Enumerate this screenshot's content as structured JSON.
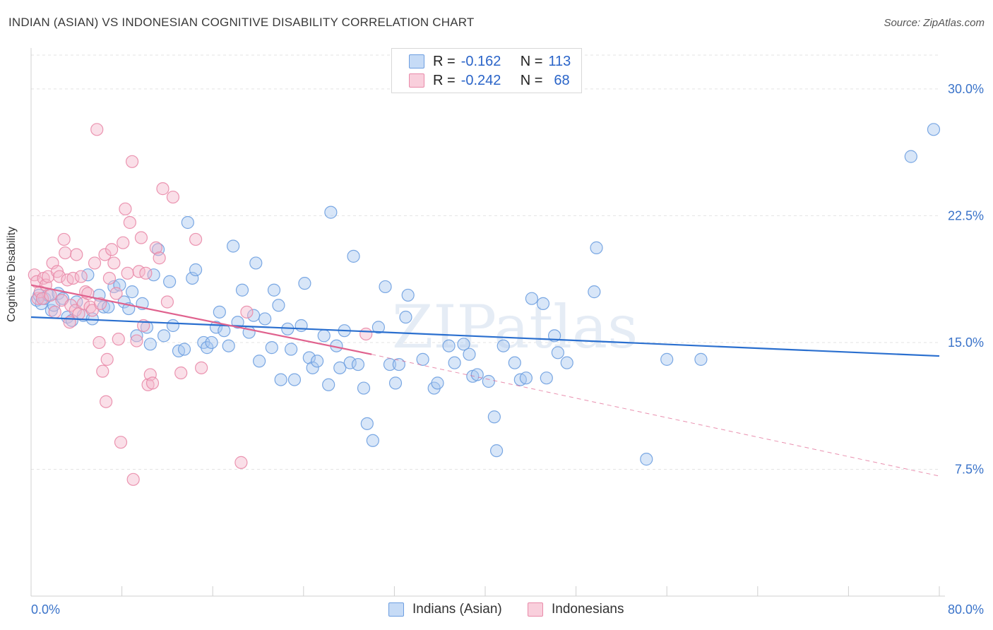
{
  "title": "INDIAN (ASIAN) VS INDONESIAN COGNITIVE DISABILITY CORRELATION CHART",
  "source": "Source: ZipAtlas.com",
  "watermark": "ZIPatlas",
  "colors": {
    "blue_fill": "#a9c7ef",
    "blue_stroke": "#6d9ee0",
    "blue_line": "#2a6fcf",
    "pink_fill": "#f5b8cc",
    "pink_stroke": "#e98aa9",
    "pink_line": "#e0628e",
    "axis_text": "#3a73c9",
    "grid": "#e3e3e3"
  },
  "legend": {
    "rows": [
      {
        "r_label": "R =",
        "r_value": "-0.162",
        "n_label": "N =",
        "n_value": "113"
      },
      {
        "r_label": "R =",
        "r_value": "-0.242",
        "n_label": "N =",
        "n_value": "68"
      }
    ]
  },
  "chart_data": {
    "type": "scatter",
    "title": "INDIAN (ASIAN) VS INDONESIAN COGNITIVE DISABILITY CORRELATION CHART",
    "xlabel": "",
    "ylabel": "Cognitive Disability",
    "xlim": [
      0,
      80
    ],
    "ylim": [
      0,
      32
    ],
    "x_tick_labels": [
      "0.0%",
      "80.0%"
    ],
    "y_ticks": [
      7.5,
      15.0,
      22.5,
      30.0
    ],
    "y_tick_labels": [
      "7.5%",
      "15.0%",
      "22.5%",
      "30.0%"
    ],
    "grid": true,
    "legend_position": "top-center",
    "series": [
      {
        "name": "Indians (Asian)",
        "r": -0.162,
        "n": 113,
        "trend": {
          "x0": 0,
          "y0": 16.5,
          "x1": 80,
          "y1": 14.2
        },
        "points": [
          [
            0.5,
            17.5
          ],
          [
            0.7,
            17.8
          ],
          [
            0.9,
            17.3
          ],
          [
            1.2,
            17.6
          ],
          [
            1.5,
            17.8
          ],
          [
            1.8,
            16.9
          ],
          [
            2.0,
            17.2
          ],
          [
            2.4,
            17.9
          ],
          [
            2.8,
            17.6
          ],
          [
            3.2,
            16.5
          ],
          [
            3.6,
            16.3
          ],
          [
            4.0,
            17.4
          ],
          [
            4.6,
            16.6
          ],
          [
            5.0,
            19.0
          ],
          [
            5.4,
            16.4
          ],
          [
            6.0,
            17.8
          ],
          [
            6.4,
            17.1
          ],
          [
            6.8,
            17.1
          ],
          [
            7.3,
            18.3
          ],
          [
            7.8,
            18.4
          ],
          [
            8.2,
            17.4
          ],
          [
            8.6,
            17.0
          ],
          [
            8.9,
            18.0
          ],
          [
            9.3,
            15.4
          ],
          [
            9.8,
            17.3
          ],
          [
            10.2,
            15.9
          ],
          [
            10.5,
            14.9
          ],
          [
            10.8,
            19.0
          ],
          [
            11.2,
            20.5
          ],
          [
            11.7,
            15.4
          ],
          [
            12.2,
            18.6
          ],
          [
            12.5,
            16.0
          ],
          [
            13.0,
            14.5
          ],
          [
            13.5,
            14.6
          ],
          [
            13.8,
            22.1
          ],
          [
            14.2,
            18.8
          ],
          [
            14.5,
            19.3
          ],
          [
            15.2,
            15.0
          ],
          [
            15.5,
            14.7
          ],
          [
            15.9,
            15.0
          ],
          [
            16.3,
            15.9
          ],
          [
            16.6,
            16.8
          ],
          [
            17.0,
            15.7
          ],
          [
            17.4,
            14.8
          ],
          [
            17.8,
            20.7
          ],
          [
            18.2,
            16.2
          ],
          [
            18.6,
            18.1
          ],
          [
            19.2,
            15.6
          ],
          [
            19.6,
            16.6
          ],
          [
            19.8,
            19.7
          ],
          [
            20.1,
            13.9
          ],
          [
            20.6,
            16.4
          ],
          [
            21.2,
            14.7
          ],
          [
            21.4,
            18.1
          ],
          [
            21.8,
            17.2
          ],
          [
            22.0,
            12.8
          ],
          [
            22.6,
            15.8
          ],
          [
            22.9,
            14.6
          ],
          [
            23.2,
            12.8
          ],
          [
            23.8,
            16.0
          ],
          [
            24.1,
            18.5
          ],
          [
            24.5,
            14.1
          ],
          [
            24.8,
            13.5
          ],
          [
            25.2,
            13.9
          ],
          [
            25.8,
            15.4
          ],
          [
            26.2,
            12.5
          ],
          [
            26.4,
            22.7
          ],
          [
            26.9,
            14.8
          ],
          [
            27.2,
            13.5
          ],
          [
            27.6,
            15.7
          ],
          [
            28.1,
            13.8
          ],
          [
            28.4,
            20.1
          ],
          [
            28.8,
            13.7
          ],
          [
            29.3,
            12.3
          ],
          [
            29.6,
            10.2
          ],
          [
            30.1,
            9.2
          ],
          [
            30.6,
            15.9
          ],
          [
            31.2,
            18.3
          ],
          [
            31.6,
            13.7
          ],
          [
            32.1,
            12.6
          ],
          [
            32.4,
            13.7
          ],
          [
            33.0,
            16.5
          ],
          [
            33.2,
            17.8
          ],
          [
            34.5,
            14.0
          ],
          [
            35.5,
            12.3
          ],
          [
            35.8,
            12.6
          ],
          [
            36.8,
            14.8
          ],
          [
            37.3,
            13.8
          ],
          [
            38.1,
            14.9
          ],
          [
            38.6,
            14.3
          ],
          [
            38.9,
            13.0
          ],
          [
            39.3,
            13.1
          ],
          [
            40.3,
            12.7
          ],
          [
            40.8,
            10.6
          ],
          [
            41.0,
            8.6
          ],
          [
            41.6,
            14.8
          ],
          [
            42.6,
            13.8
          ],
          [
            43.1,
            12.8
          ],
          [
            43.6,
            12.9
          ],
          [
            44.1,
            17.6
          ],
          [
            45.1,
            17.3
          ],
          [
            45.4,
            12.9
          ],
          [
            46.1,
            15.4
          ],
          [
            46.4,
            14.4
          ],
          [
            47.2,
            13.8
          ],
          [
            49.6,
            18.0
          ],
          [
            49.8,
            20.6
          ],
          [
            54.2,
            8.1
          ],
          [
            56.0,
            14.0
          ],
          [
            59.0,
            14.0
          ],
          [
            77.5,
            26.0
          ],
          [
            79.5,
            27.6
          ]
        ]
      },
      {
        "name": "Indonesians",
        "r": -0.242,
        "n": 68,
        "trend": {
          "x0": 0,
          "y0": 18.4,
          "x1": 30,
          "y1": 14.3
        },
        "trend_extension": {
          "x0": 30,
          "y0": 14.3,
          "x1": 80,
          "y1": 7.1
        },
        "points": [
          [
            0.3,
            19.0
          ],
          [
            0.5,
            18.6
          ],
          [
            0.6,
            17.6
          ],
          [
            0.8,
            18.0
          ],
          [
            1.0,
            17.6
          ],
          [
            1.1,
            18.8
          ],
          [
            1.3,
            18.4
          ],
          [
            1.5,
            18.9
          ],
          [
            1.7,
            17.8
          ],
          [
            1.9,
            19.7
          ],
          [
            2.1,
            16.8
          ],
          [
            2.3,
            19.2
          ],
          [
            2.5,
            18.9
          ],
          [
            2.7,
            17.5
          ],
          [
            2.9,
            21.1
          ],
          [
            3.0,
            20.3
          ],
          [
            3.2,
            18.7
          ],
          [
            3.4,
            16.2
          ],
          [
            3.5,
            17.2
          ],
          [
            3.7,
            18.8
          ],
          [
            3.9,
            16.9
          ],
          [
            4.0,
            20.2
          ],
          [
            4.2,
            16.7
          ],
          [
            4.4,
            18.9
          ],
          [
            4.6,
            17.3
          ],
          [
            4.8,
            18.0
          ],
          [
            5.0,
            17.9
          ],
          [
            5.2,
            17.1
          ],
          [
            5.4,
            16.9
          ],
          [
            5.6,
            19.7
          ],
          [
            5.8,
            27.6
          ],
          [
            6.0,
            15.0
          ],
          [
            6.1,
            17.3
          ],
          [
            6.3,
            13.3
          ],
          [
            6.5,
            20.2
          ],
          [
            6.6,
            11.5
          ],
          [
            6.7,
            14.0
          ],
          [
            6.9,
            18.8
          ],
          [
            7.1,
            20.5
          ],
          [
            7.3,
            19.7
          ],
          [
            7.5,
            17.9
          ],
          [
            7.7,
            15.2
          ],
          [
            7.9,
            9.1
          ],
          [
            8.1,
            20.9
          ],
          [
            8.3,
            22.9
          ],
          [
            8.5,
            19.1
          ],
          [
            8.7,
            22.1
          ],
          [
            8.9,
            25.7
          ],
          [
            9.0,
            6.9
          ],
          [
            9.3,
            15.1
          ],
          [
            9.5,
            19.2
          ],
          [
            9.7,
            21.2
          ],
          [
            9.9,
            16.0
          ],
          [
            10.1,
            19.1
          ],
          [
            10.3,
            12.5
          ],
          [
            10.5,
            13.1
          ],
          [
            10.7,
            12.6
          ],
          [
            11.0,
            20.6
          ],
          [
            11.3,
            20.0
          ],
          [
            11.6,
            24.1
          ],
          [
            12.0,
            17.4
          ],
          [
            12.5,
            23.6
          ],
          [
            13.2,
            13.2
          ],
          [
            14.5,
            21.1
          ],
          [
            15.0,
            13.5
          ],
          [
            18.5,
            7.9
          ],
          [
            19.0,
            16.8
          ],
          [
            29.5,
            15.5
          ]
        ]
      }
    ]
  },
  "bottom_legend": [
    {
      "label": "Indians (Asian)"
    },
    {
      "label": "Indonesians"
    }
  ]
}
